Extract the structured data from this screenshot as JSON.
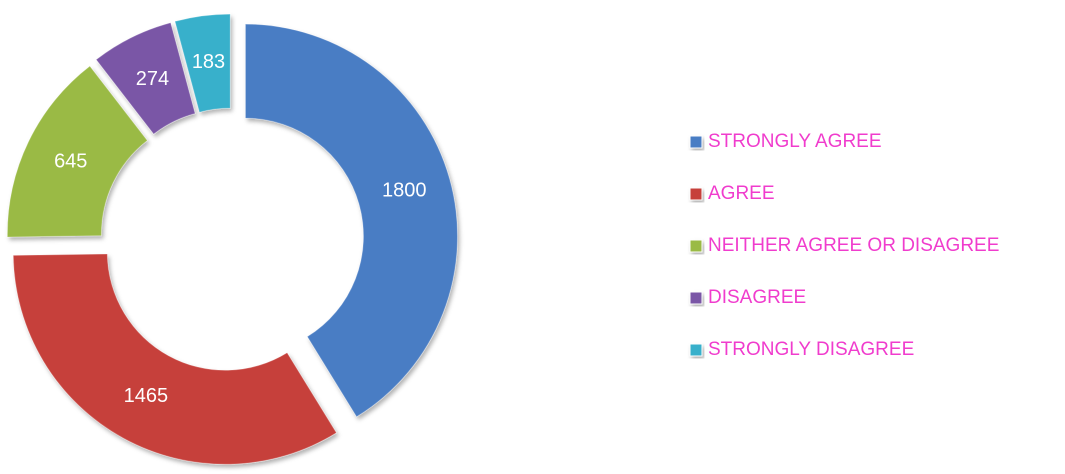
{
  "chart_data": {
    "type": "pie",
    "donut": true,
    "categories": [
      "STRONGLY AGREE",
      "AGREE",
      "NEITHER AGREE OR DISAGREE",
      "DISAGREE",
      "STRONGLY DISAGREE"
    ],
    "values": [
      1800,
      1465,
      645,
      274,
      183
    ],
    "colors": [
      "#4a7dc4",
      "#c6403b",
      "#9aba45",
      "#7a56a6",
      "#38b0cb"
    ],
    "legend": "right"
  }
}
